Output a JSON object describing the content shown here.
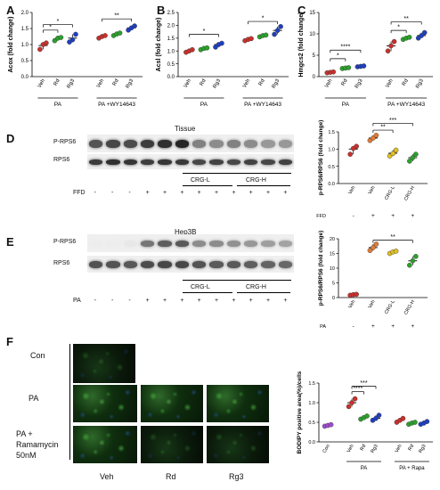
{
  "panels": {
    "A": {
      "letter": "A",
      "ylabel": "Acox (fold change)",
      "ymax": 2.0,
      "yticks": [
        "0.0",
        "0.5",
        "1.0",
        "1.5",
        "2.0"
      ],
      "groups": [
        "Veh",
        "Rd",
        "Rg3",
        "Veh",
        "Rd",
        "Rg3"
      ],
      "colors": [
        "#c9302c",
        "#2ca02c",
        "#1f3fbf",
        "#c9302c",
        "#2ca02c",
        "#1f3fbf"
      ],
      "means": [
        0.97,
        1.18,
        1.2,
        1.25,
        1.33,
        1.52
      ],
      "points": [
        [
          0.85,
          1.0,
          1.05
        ],
        [
          1.12,
          1.2,
          1.22
        ],
        [
          1.08,
          1.15,
          1.32
        ],
        [
          1.2,
          1.25,
          1.28
        ],
        [
          1.28,
          1.33,
          1.36
        ],
        [
          1.45,
          1.52,
          1.58
        ]
      ],
      "sig": [
        {
          "from": 0,
          "to": 1,
          "label": "*",
          "y": 1.45
        },
        {
          "from": 0,
          "to": 2,
          "label": "*",
          "y": 1.62
        },
        {
          "from": 3,
          "to": 5,
          "label": "**",
          "y": 1.8
        }
      ],
      "group_labels": [
        "PA",
        "PA +WY14643"
      ]
    },
    "B": {
      "letter": "B",
      "ylabel": "Acsl (fold change)",
      "ymax": 2.5,
      "yticks": [
        "0.0",
        "0.5",
        "1.0",
        "1.5",
        "2.0",
        "2.5"
      ],
      "groups": [
        "Veh",
        "Rd",
        "Rg3",
        "Veh",
        "Rd",
        "Rg3"
      ],
      "colors": [
        "#c9302c",
        "#2ca02c",
        "#1f3fbf",
        "#c9302c",
        "#2ca02c",
        "#1f3fbf"
      ],
      "means": [
        1.0,
        1.1,
        1.25,
        1.45,
        1.6,
        1.8
      ],
      "points": [
        [
          0.95,
          1.0,
          1.05
        ],
        [
          1.05,
          1.1,
          1.12
        ],
        [
          1.15,
          1.25,
          1.3
        ],
        [
          1.4,
          1.45,
          1.48
        ],
        [
          1.55,
          1.6,
          1.62
        ],
        [
          1.65,
          1.8,
          1.95
        ]
      ],
      "sig": [
        {
          "from": 0,
          "to": 2,
          "label": "*",
          "y": 1.65
        },
        {
          "from": 3,
          "to": 5,
          "label": "*",
          "y": 2.15
        }
      ],
      "group_labels": [
        "PA",
        "PA +WY14643"
      ]
    },
    "C": {
      "letter": "C",
      "ylabel": "Hmgcs2 (fold change)",
      "ymax": 15,
      "yticks": [
        "0",
        "5",
        "10",
        "15"
      ],
      "groups": [
        "Veh",
        "Rd",
        "Rg3",
        "Veh",
        "Rd",
        "Rg3"
      ],
      "colors": [
        "#c9302c",
        "#2ca02c",
        "#1f3fbf",
        "#c9302c",
        "#2ca02c",
        "#1f3fbf"
      ],
      "means": [
        1.0,
        2.0,
        2.4,
        7.2,
        9.0,
        9.6
      ],
      "points": [
        [
          0.9,
          1.0,
          1.1
        ],
        [
          1.9,
          2.0,
          2.1
        ],
        [
          2.3,
          2.4,
          2.5
        ],
        [
          6.0,
          7.2,
          8.2
        ],
        [
          8.7,
          9.0,
          9.2
        ],
        [
          9.0,
          9.6,
          10.3
        ]
      ],
      "sig": [
        {
          "from": 0,
          "to": 1,
          "label": "*",
          "y": 4.2
        },
        {
          "from": 0,
          "to": 2,
          "label": "****",
          "y": 6.2
        },
        {
          "from": 3,
          "to": 4,
          "label": "*",
          "y": 10.8
        },
        {
          "from": 3,
          "to": 5,
          "label": "**",
          "y": 12.8
        }
      ],
      "group_labels": [
        "PA",
        "PA +WY14643"
      ]
    },
    "D": {
      "letter": "D",
      "blot_title": "Tissue",
      "row1": "P-RPS6",
      "row2": "RPS6",
      "crg_l": "CRG-L",
      "crg_h": "CRG-H",
      "treat_label": "FFD",
      "treat": [
        "-",
        "-",
        "-",
        "+",
        "+",
        "+",
        "+",
        "+",
        "+",
        "+",
        "+",
        "+"
      ],
      "chart": {
        "ylabel": "p-RPS6/RPS6 (fold change)",
        "ymax": 1.5,
        "yticks": [
          "0.0",
          "0.5",
          "1.0",
          "1.5"
        ],
        "groups": [
          "Veh",
          "Veh",
          "CRG-L",
          "CRG-H"
        ],
        "colors": [
          "#c9302c",
          "#e07b39",
          "#e0c020",
          "#2ca02c"
        ],
        "means": [
          1.0,
          1.32,
          0.88,
          0.75
        ],
        "points": [
          [
            0.85,
            1.02,
            1.08
          ],
          [
            1.25,
            1.32,
            1.4
          ],
          [
            0.8,
            0.87,
            0.97
          ],
          [
            0.65,
            0.75,
            0.85
          ]
        ],
        "sig": [
          {
            "from": 1,
            "to": 2,
            "label": "**",
            "y": 1.55
          },
          {
            "from": 1,
            "to": 3,
            "label": "***",
            "y": 1.75
          }
        ],
        "treat_label": "FFD",
        "treat": [
          "-",
          "+",
          "+",
          "+"
        ]
      }
    },
    "E": {
      "letter": "E",
      "blot_title": "Hep3B",
      "row1": "P-RPS6",
      "row2": "RPS6",
      "crg_l": "CRG-L",
      "crg_h": "CRG-H",
      "treat_label": "PA",
      "treat": [
        "-",
        "-",
        "-",
        "+",
        "+",
        "+",
        "+",
        "+",
        "+",
        "+",
        "+",
        "+"
      ],
      "chart": {
        "ylabel": "p-RPS6/RPS6 (fold change)",
        "ymax": 20,
        "yticks": [
          "0",
          "5",
          "10",
          "15",
          "20"
        ],
        "groups": [
          "Veh",
          "Veh",
          "CRG-L",
          "CRG-H"
        ],
        "colors": [
          "#c9302c",
          "#e07b39",
          "#e0c020",
          "#2ca02c"
        ],
        "means": [
          1.0,
          17.0,
          15.5,
          12.5
        ],
        "points": [
          [
            0.8,
            1.0,
            1.1
          ],
          [
            16.0,
            17.0,
            18.2
          ],
          [
            15.0,
            15.5,
            15.8
          ],
          [
            11.0,
            12.5,
            14.0
          ]
        ],
        "sig": [
          {
            "from": 1,
            "to": 3,
            "label": "**",
            "y": 19.5
          }
        ],
        "treat_label": "PA",
        "treat": [
          "-",
          "+",
          "+",
          "+"
        ]
      }
    },
    "F": {
      "letter": "F",
      "rows": [
        "Con",
        "PA",
        "PA +\nRamamycin\n50nM"
      ],
      "cols": [
        "Veh",
        "Rd",
        "Rg3"
      ],
      "chart": {
        "ylabel": "BODIPY positive area(%)/cells",
        "ymax": 1.5,
        "yticks": [
          "0.0",
          "0.5",
          "1.0",
          "1.5"
        ],
        "groups": [
          "Con",
          "Veh",
          "Rd",
          "Rg3",
          "Veh",
          "Rd",
          "Rg3"
        ],
        "colors": [
          "#9b4dca",
          "#c9302c",
          "#2ca02c",
          "#1f3fbf",
          "#c9302c",
          "#2ca02c",
          "#1f3fbf"
        ],
        "means": [
          0.42,
          1.0,
          0.62,
          0.6,
          0.55,
          0.48,
          0.48
        ],
        "points": [
          [
            0.4,
            0.42,
            0.44
          ],
          [
            0.9,
            1.0,
            1.1
          ],
          [
            0.58,
            0.62,
            0.66
          ],
          [
            0.55,
            0.6,
            0.68
          ],
          [
            0.5,
            0.55,
            0.6
          ],
          [
            0.45,
            0.48,
            0.5
          ],
          [
            0.45,
            0.48,
            0.52
          ]
        ],
        "sig": [
          {
            "from": 1,
            "to": 2,
            "label": "****",
            "y": 1.28
          },
          {
            "from": 1,
            "to": 3,
            "label": "***",
            "y": 1.42
          }
        ],
        "group_labels": [
          "PA",
          "PA + Rapa"
        ]
      }
    }
  }
}
